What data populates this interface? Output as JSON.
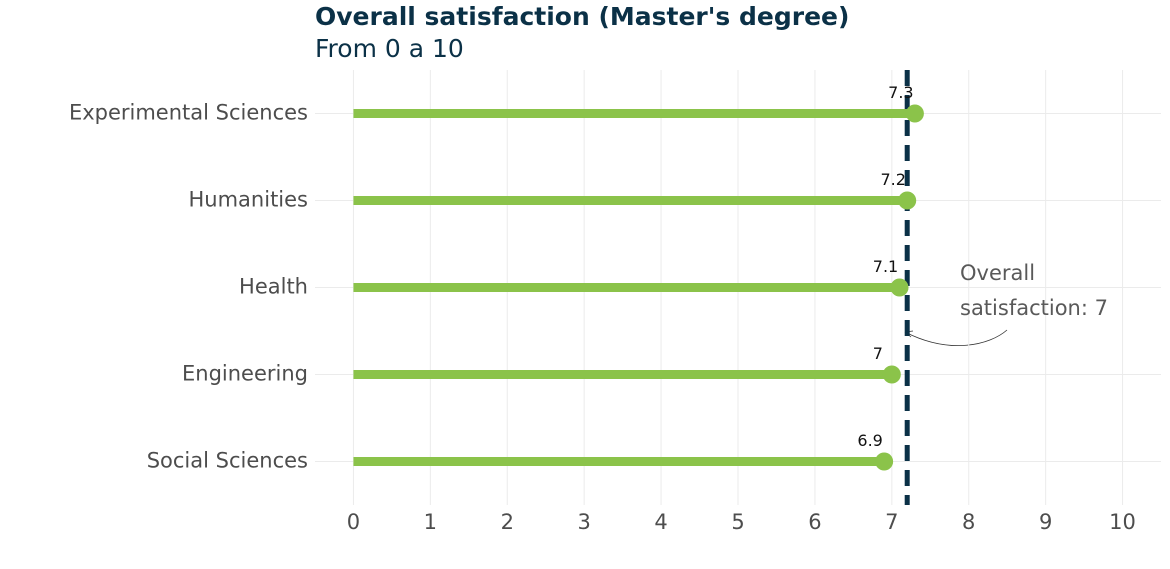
{
  "chart_data": {
    "type": "lollipop",
    "title": "Overall satisfaction (Master's degree)",
    "subtitle": "From 0 a 10",
    "categories": [
      "Experimental Sciences",
      "Humanities",
      "Health",
      "Engineering",
      "Social Sciences"
    ],
    "values": [
      7.3,
      7.2,
      7.1,
      7,
      6.9
    ],
    "color": "#8bc34a",
    "xlim": [
      -0.5,
      10.5
    ],
    "xticks": [
      0,
      1,
      2,
      3,
      4,
      5,
      6,
      7,
      8,
      9,
      10
    ],
    "grid": true,
    "reference_line": {
      "value": 7.2,
      "label": "Overall satisfaction: 7",
      "color": "#0b3147"
    }
  }
}
